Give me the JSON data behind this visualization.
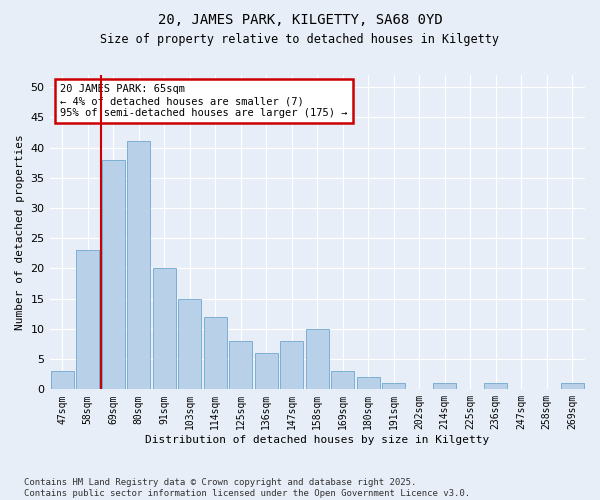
{
  "title1": "20, JAMES PARK, KILGETTY, SA68 0YD",
  "title2": "Size of property relative to detached houses in Kilgetty",
  "xlabel": "Distribution of detached houses by size in Kilgetty",
  "ylabel": "Number of detached properties",
  "categories": [
    "47sqm",
    "58sqm",
    "69sqm",
    "80sqm",
    "91sqm",
    "103sqm",
    "114sqm",
    "125sqm",
    "136sqm",
    "147sqm",
    "158sqm",
    "169sqm",
    "180sqm",
    "191sqm",
    "202sqm",
    "214sqm",
    "225sqm",
    "236sqm",
    "247sqm",
    "258sqm",
    "269sqm"
  ],
  "values": [
    3,
    23,
    38,
    41,
    20,
    15,
    12,
    8,
    6,
    8,
    10,
    3,
    2,
    1,
    0,
    1,
    0,
    1,
    0,
    0,
    1
  ],
  "bar_color": "#b8d0e8",
  "bar_edge_color": "#6fa8d0",
  "vline_color": "#cc0000",
  "annotation_text": "20 JAMES PARK: 65sqm\n← 4% of detached houses are smaller (7)\n95% of semi-detached houses are larger (175) →",
  "annotation_box_color": "#cc0000",
  "ylim": [
    0,
    52
  ],
  "yticks": [
    0,
    5,
    10,
    15,
    20,
    25,
    30,
    35,
    40,
    45,
    50
  ],
  "background_color": "#e8eef7",
  "grid_color": "#ffffff",
  "footer": "Contains HM Land Registry data © Crown copyright and database right 2025.\nContains public sector information licensed under the Open Government Licence v3.0."
}
